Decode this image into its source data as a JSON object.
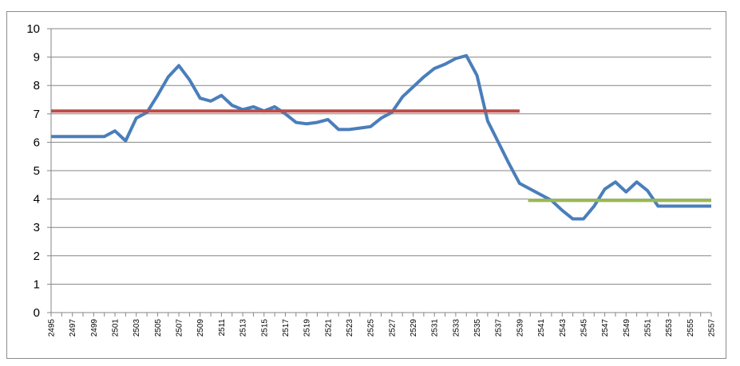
{
  "chart_data": {
    "type": "line",
    "title": "",
    "xlabel": "",
    "ylabel": "",
    "ylim": [
      0,
      10
    ],
    "yticks": [
      0,
      1,
      2,
      3,
      4,
      5,
      6,
      7,
      8,
      9,
      10
    ],
    "x_range": [
      2495,
      2557
    ],
    "xticks": [
      2495,
      2497,
      2499,
      2501,
      2503,
      2505,
      2507,
      2509,
      2511,
      2513,
      2515,
      2517,
      2519,
      2521,
      2523,
      2525,
      2527,
      2529,
      2531,
      2533,
      2535,
      2537,
      2539,
      2541,
      2543,
      2545,
      2547,
      2549,
      2551,
      2553,
      2555,
      2557
    ],
    "xtick_labels": [
      "2495",
      "2497",
      "2499",
      "2501",
      "2503",
      "2505",
      "2507",
      "2509",
      "2511",
      "2513",
      "2515",
      "2517",
      "2519",
      "2521",
      "2523",
      "2525",
      "2527",
      "2529",
      "2531",
      "2533",
      "2535",
      "2537",
      "2539",
      "2541",
      "2543",
      "2545",
      "2547",
      "2549",
      "2551",
      "2553",
      "2555",
      "2557"
    ],
    "grid": "horizontal",
    "legend": "none",
    "series": [
      {
        "color": "#4a7ebb",
        "x": [
          2495,
          2496,
          2497,
          2498,
          2499,
          2500,
          2501,
          2502,
          2503,
          2504,
          2505,
          2506,
          2507,
          2508,
          2509,
          2510,
          2511,
          2512,
          2513,
          2514,
          2515,
          2516,
          2517,
          2518,
          2519,
          2520,
          2521,
          2522,
          2523,
          2524,
          2525,
          2526,
          2527,
          2528,
          2529,
          2530,
          2531,
          2532,
          2533,
          2534,
          2535,
          2536,
          2537,
          2538,
          2539,
          2540,
          2541,
          2542,
          2543,
          2544,
          2545,
          2546,
          2547,
          2548,
          2549,
          2550,
          2551,
          2552,
          2553,
          2554,
          2555,
          2556,
          2557
        ],
        "y": [
          6.2,
          6.2,
          6.2,
          6.2,
          6.2,
          6.2,
          6.4,
          6.05,
          6.85,
          7.05,
          7.65,
          8.3,
          8.7,
          8.2,
          7.55,
          7.45,
          7.65,
          7.3,
          7.15,
          7.25,
          7.1,
          7.25,
          7.0,
          6.7,
          6.65,
          6.7,
          6.8,
          6.45,
          6.45,
          6.5,
          6.55,
          6.85,
          7.05,
          7.6,
          7.95,
          8.3,
          8.6,
          8.75,
          8.95,
          9.05,
          8.35,
          6.75,
          6.0,
          5.25,
          4.55,
          4.35,
          4.15,
          3.95,
          3.6,
          3.3,
          3.3,
          3.75,
          4.35,
          4.6,
          4.25,
          4.6,
          4.3,
          3.75,
          3.75,
          3.75,
          3.75,
          3.75,
          3.75
        ]
      },
      {
        "color": "#be4b48",
        "x": [
          2495,
          2539
        ],
        "y": [
          7.1,
          7.1
        ]
      },
      {
        "color": "#98b954",
        "x": [
          2539.8,
          2557
        ],
        "y": [
          3.95,
          3.95
        ]
      }
    ]
  }
}
